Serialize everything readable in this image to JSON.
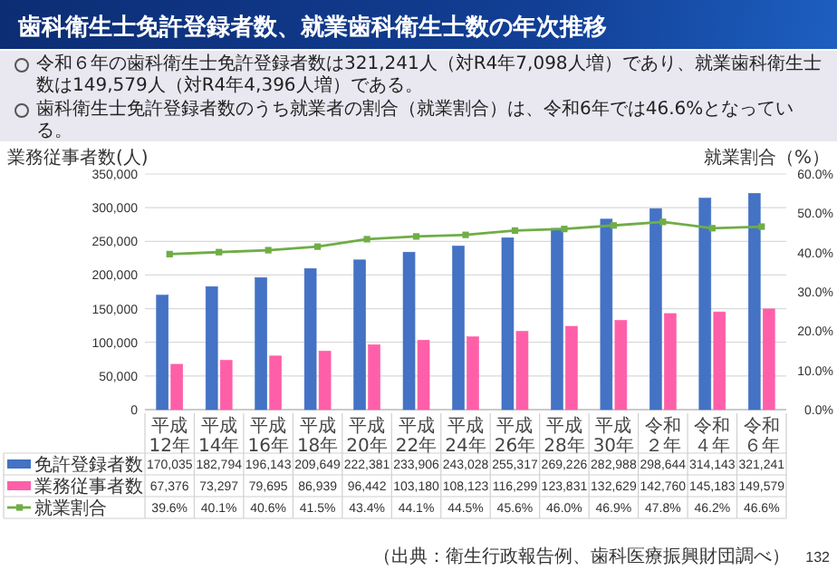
{
  "chart_data": {
    "type": "bar",
    "title": "歯科衛生士免許登録者数、就業歯科衛生士数の年次推移",
    "ylabel": "業務従事者数(人)",
    "y2label": "就業割合（%）",
    "categories": [
      "平成12年",
      "平成14年",
      "平成16年",
      "平成18年",
      "平成20年",
      "平成22年",
      "平成24年",
      "平成26年",
      "平成28年",
      "平成30年",
      "令和２年",
      "令和４年",
      "令和６年"
    ],
    "series": [
      {
        "name": "免許登録者数",
        "color": "#4472c4",
        "values": [
          170035,
          182794,
          196143,
          209649,
          222381,
          233906,
          243028,
          255317,
          269226,
          282988,
          298644,
          314143,
          321241
        ],
        "value_labels": [
          "170,035",
          "182,794",
          "196,143",
          "209,649",
          "222,381",
          "233,906",
          "243,028",
          "255,317",
          "269,226",
          "282,988",
          "298,644",
          "314,143",
          "321,241"
        ]
      },
      {
        "name": "業務従事者数",
        "color": "#ff5fa8",
        "values": [
          67376,
          73297,
          79695,
          86939,
          96442,
          103180,
          108123,
          116299,
          123831,
          132629,
          142760,
          145183,
          149579
        ],
        "value_labels": [
          "67,376",
          "73,297",
          "79,695",
          "86,939",
          "96,442",
          "103,180",
          "108,123",
          "116,299",
          "123,831",
          "132,629",
          "142,760",
          "145,183",
          "149,579"
        ]
      },
      {
        "name": "就業割合",
        "color": "#70ad47",
        "type": "line",
        "axis": "y2",
        "values": [
          39.6,
          40.1,
          40.6,
          41.5,
          43.4,
          44.1,
          44.5,
          45.6,
          46.0,
          46.9,
          47.8,
          46.2,
          46.6
        ],
        "value_labels": [
          "39.6%",
          "40.1%",
          "40.6%",
          "41.5%",
          "43.4%",
          "44.1%",
          "44.5%",
          "45.6%",
          "46.0%",
          "46.9%",
          "47.8%",
          "46.2%",
          "46.6%"
        ]
      }
    ],
    "ylim": [
      0,
      350000
    ],
    "yticks": [
      {
        "value": 0,
        "label": "0"
      },
      {
        "value": 50000,
        "label": "50,000"
      },
      {
        "value": 100000,
        "label": "100,000"
      },
      {
        "value": 150000,
        "label": "150,000"
      },
      {
        "value": 200000,
        "label": "200,000"
      },
      {
        "value": 250000,
        "label": "250,000"
      },
      {
        "value": 300000,
        "label": "300,000"
      },
      {
        "value": 350000,
        "label": "350,000"
      }
    ],
    "y2lim": [
      0,
      60
    ],
    "y2ticks": [
      {
        "value": 0,
        "label": "0.0%"
      },
      {
        "value": 10,
        "label": "10.0%"
      },
      {
        "value": 20,
        "label": "20.0%"
      },
      {
        "value": 30,
        "label": "30.0%"
      },
      {
        "value": 40,
        "label": "40.0%"
      },
      {
        "value": 50,
        "label": "50.0%"
      },
      {
        "value": 60,
        "label": "60.0%"
      }
    ],
    "grid": "y",
    "legend": "bottom",
    "marker": "square",
    "line_style": "solid",
    "annotations": [
      "令和６年の歯科衛生士免許登録者数は321,241人（対R4年7,098人増）であり、就業歯科衛生士数は149,579人（対R4年4,396人増）である。",
      "歯科衛生士免許登録者数のうち就業者の割合（就業割合）は、令和6年では46.6%となっている。",
      "（出典：衛生行政報告例、歯科医療振興財団調べ）",
      "132"
    ]
  }
}
